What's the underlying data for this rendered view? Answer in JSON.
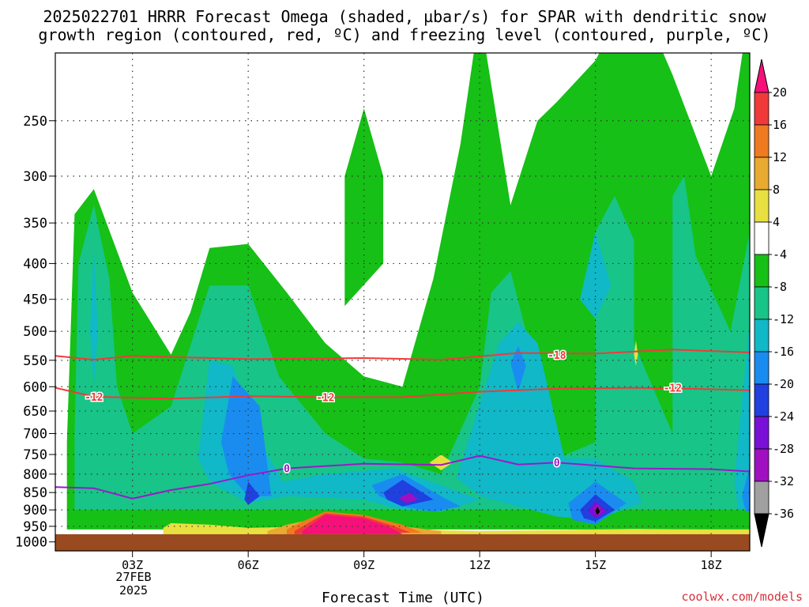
{
  "title": {
    "line1": "2025022701 HRRR Forecast Omega (shaded, µbar/s) for SPAR with dendritic snow",
    "line2": "growth region (contoured, red, ºC) and freezing level (contoured, purple, ºC)"
  },
  "chart_data": {
    "type": "heatmap",
    "xlabel": "Forecast Time (UTC)",
    "x_ticks": [
      "03Z",
      "06Z",
      "09Z",
      "12Z",
      "15Z",
      "18Z"
    ],
    "x_tick_hours": [
      3,
      6,
      9,
      12,
      15,
      18
    ],
    "x_range_hours": [
      1,
      19
    ],
    "date_label": {
      "day": "27FEB",
      "year": "2025"
    },
    "y_ticks": [
      250,
      300,
      350,
      400,
      450,
      500,
      550,
      600,
      650,
      700,
      750,
      800,
      850,
      900,
      950,
      1000
    ],
    "y_range_hpa": [
      200,
      1030
    ],
    "y_scale": "log-pressure",
    "surface_pressure_hpa": 975,
    "grid": "dotted",
    "colorbar": {
      "labels": [
        "20",
        "16",
        "12",
        "8",
        "4",
        "-4",
        "-8",
        "-12",
        "-16",
        "-20",
        "-24",
        "-28",
        "-32",
        "-36"
      ],
      "colors": [
        "#f5107a",
        "#f03a3a",
        "#f07a20",
        "#e8aa30",
        "#e8e040",
        "#ffffff",
        "#16c016",
        "#18c488",
        "#10b8c8",
        "#1a8cf0",
        "#2040e0",
        "#7a10d8",
        "#a010c0",
        "#a0a0a0",
        "#000000"
      ]
    },
    "contours": [
      {
        "label": "-18",
        "color": "#f03a3a",
        "points": [
          [
            1,
            542
          ],
          [
            2,
            549
          ],
          [
            3,
            542
          ],
          [
            6,
            548
          ],
          [
            9,
            546
          ],
          [
            11,
            549
          ],
          [
            13,
            537
          ],
          [
            15,
            538
          ],
          [
            17,
            531
          ],
          [
            19,
            536
          ]
        ],
        "label_at": [
          14,
          540
        ]
      },
      {
        "label": "-12",
        "color": "#f03a3a",
        "points": [
          [
            1,
            602
          ],
          [
            2,
            620
          ],
          [
            4,
            624
          ],
          [
            6,
            619
          ],
          [
            8,
            621
          ],
          [
            10,
            621
          ],
          [
            12,
            610
          ],
          [
            14,
            604
          ],
          [
            16,
            602
          ],
          [
            18,
            605
          ],
          [
            19,
            607
          ]
        ],
        "label_at": [
          [
            2,
            620
          ],
          [
            8,
            621
          ],
          [
            17,
            602
          ]
        ]
      },
      {
        "label": "0",
        "color": "#9a1ac8",
        "points": [
          [
            1,
            835
          ],
          [
            2,
            838
          ],
          [
            3,
            867
          ],
          [
            4,
            843
          ],
          [
            5,
            826
          ],
          [
            6,
            803
          ],
          [
            7,
            785
          ],
          [
            9,
            773
          ],
          [
            11,
            776
          ],
          [
            12,
            753
          ],
          [
            13,
            775
          ],
          [
            14,
            770
          ],
          [
            16,
            785
          ],
          [
            18,
            787
          ],
          [
            19,
            793
          ]
        ],
        "label_at": [
          [
            7,
            785
          ],
          [
            14,
            770
          ]
        ]
      }
    ],
    "omega_regions": [
      {
        "value": -8,
        "polygon": [
          [
            1.3,
            720
          ],
          [
            1.5,
            340
          ],
          [
            2,
            313
          ],
          [
            3,
            440
          ],
          [
            4,
            540
          ],
          [
            4.5,
            470
          ],
          [
            5,
            380
          ],
          [
            6,
            375
          ],
          [
            7,
            440
          ],
          [
            8,
            520
          ],
          [
            9,
            580
          ],
          [
            10,
            600
          ],
          [
            10.8,
            420
          ],
          [
            11.5,
            270
          ],
          [
            12,
            175
          ],
          [
            12.8,
            330
          ],
          [
            13.5,
            250
          ],
          [
            14,
            235
          ],
          [
            15,
            205
          ],
          [
            16,
            160
          ],
          [
            17,
            215
          ],
          [
            18,
            300
          ],
          [
            18.6,
            240
          ],
          [
            19,
            170
          ],
          [
            19,
            960
          ],
          [
            1.3,
            960
          ]
        ]
      },
      {
        "value": -8,
        "polygon": [
          [
            8.5,
            460
          ],
          [
            8.5,
            300
          ],
          [
            9,
            240
          ],
          [
            9.5,
            300
          ],
          [
            9.5,
            400
          ]
        ]
      },
      {
        "value": -12,
        "polygon": [
          [
            1.5,
            700
          ],
          [
            1.6,
            400
          ],
          [
            2,
            330
          ],
          [
            2.4,
            420
          ],
          [
            2.6,
            600
          ],
          [
            3,
            700
          ],
          [
            4,
            640
          ],
          [
            5,
            430
          ],
          [
            6,
            430
          ],
          [
            6.8,
            580
          ],
          [
            8,
            700
          ],
          [
            9,
            760
          ],
          [
            10,
            770
          ],
          [
            11,
            800
          ],
          [
            12,
            600
          ],
          [
            12.3,
            440
          ],
          [
            12.8,
            410
          ],
          [
            13.2,
            500
          ],
          [
            14,
            760
          ],
          [
            15,
            720
          ],
          [
            15,
            360
          ],
          [
            15.5,
            320
          ],
          [
            16,
            370
          ],
          [
            16,
            520
          ],
          [
            17,
            700
          ],
          [
            17,
            320
          ],
          [
            17.3,
            300
          ],
          [
            17.6,
            390
          ],
          [
            18.5,
            500
          ],
          [
            19,
            360
          ],
          [
            19,
            900
          ],
          [
            1.5,
            900
          ]
        ]
      },
      {
        "value": -16,
        "polygon": [
          [
            1.9,
            500
          ],
          [
            2,
            380
          ],
          [
            2.1,
            500
          ],
          [
            2,
            600
          ]
        ]
      },
      {
        "value": -16,
        "polygon": [
          [
            4.7,
            760
          ],
          [
            5,
            550
          ],
          [
            5.6,
            560
          ],
          [
            6.2,
            700
          ],
          [
            6.9,
            820
          ],
          [
            8,
            800
          ],
          [
            9.8,
            785
          ],
          [
            11,
            830
          ],
          [
            12,
            870
          ],
          [
            11,
            905
          ],
          [
            10,
            900
          ],
          [
            9,
            870
          ],
          [
            7,
            860
          ],
          [
            6,
            880
          ],
          [
            5,
            820
          ]
        ]
      },
      {
        "value": -16,
        "polygon": [
          [
            11.4,
            810
          ],
          [
            12.5,
            520
          ],
          [
            13,
            485
          ],
          [
            13.5,
            520
          ],
          [
            14.2,
            760
          ],
          [
            15,
            760
          ],
          [
            16,
            820
          ],
          [
            16.2,
            880
          ],
          [
            15,
            930
          ],
          [
            14,
            920
          ],
          [
            13,
            890
          ],
          [
            12,
            860
          ]
        ]
      },
      {
        "value": -16,
        "polygon": [
          [
            14.6,
            450
          ],
          [
            15,
            360
          ],
          [
            15.4,
            430
          ],
          [
            15,
            480
          ]
        ]
      },
      {
        "value": -16,
        "polygon": [
          [
            18.6,
            820
          ],
          [
            19,
            480
          ],
          [
            19,
            900
          ],
          [
            18.7,
            900
          ]
        ]
      },
      {
        "value": -20,
        "polygon": [
          [
            5.3,
            720
          ],
          [
            5.6,
            580
          ],
          [
            6.3,
            640
          ],
          [
            6.6,
            860
          ],
          [
            6,
            860
          ],
          [
            5.5,
            800
          ]
        ]
      },
      {
        "value": -20,
        "polygon": [
          [
            9.2,
            830
          ],
          [
            10,
            800
          ],
          [
            11,
            860
          ],
          [
            11.5,
            890
          ],
          [
            10.8,
            905
          ],
          [
            10,
            890
          ],
          [
            9.4,
            860
          ]
        ]
      },
      {
        "value": -20,
        "polygon": [
          [
            12.8,
            555
          ],
          [
            13,
            525
          ],
          [
            13.2,
            560
          ],
          [
            13,
            610
          ]
        ]
      },
      {
        "value": -20,
        "polygon": [
          [
            14.3,
            880
          ],
          [
            15,
            820
          ],
          [
            15.8,
            880
          ],
          [
            15,
            945
          ],
          [
            14.4,
            930
          ]
        ]
      },
      {
        "value": -20,
        "polygon": [
          [
            18.8,
            860
          ],
          [
            19,
            780
          ],
          [
            19,
            905
          ],
          [
            18.9,
            905
          ]
        ]
      },
      {
        "value": -24,
        "polygon": [
          [
            5.9,
            870
          ],
          [
            6,
            820
          ],
          [
            6.3,
            860
          ],
          [
            6,
            885
          ]
        ]
      },
      {
        "value": -24,
        "polygon": [
          [
            9.5,
            850
          ],
          [
            10,
            815
          ],
          [
            10.8,
            870
          ],
          [
            10,
            890
          ],
          [
            9.6,
            870
          ]
        ]
      },
      {
        "value": -24,
        "polygon": [
          [
            14.6,
            900
          ],
          [
            15,
            855
          ],
          [
            15.5,
            900
          ],
          [
            15,
            935
          ],
          [
            14.7,
            925
          ]
        ]
      },
      {
        "value": -28,
        "polygon": [
          [
            14.8,
            905
          ],
          [
            15,
            875
          ],
          [
            15.3,
            905
          ],
          [
            15,
            925
          ]
        ]
      },
      {
        "value": -32,
        "polygon": [
          [
            9.9,
            865
          ],
          [
            10.2,
            850
          ],
          [
            10.4,
            870
          ],
          [
            10.1,
            880
          ]
        ]
      },
      {
        "value": -32,
        "polygon": [
          [
            14.95,
            900
          ],
          [
            15.05,
            880
          ],
          [
            15.2,
            905
          ],
          [
            15.05,
            920
          ]
        ]
      },
      {
        "value": -36,
        "polygon": [
          [
            15,
            905
          ],
          [
            15.05,
            890
          ],
          [
            15.12,
            905
          ],
          [
            15.05,
            915
          ]
        ]
      },
      {
        "value": 4,
        "polygon": [
          [
            10.7,
            770
          ],
          [
            11,
            750
          ],
          [
            11.3,
            770
          ],
          [
            11,
            790
          ]
        ]
      },
      {
        "value": 4,
        "polygon": [
          [
            3.8,
            955
          ],
          [
            4,
            940
          ],
          [
            5,
            945
          ],
          [
            6,
            955
          ],
          [
            8,
            950
          ],
          [
            10,
            960
          ],
          [
            12,
            965
          ],
          [
            14,
            962
          ],
          [
            16,
            958
          ],
          [
            18,
            960
          ],
          [
            19,
            960
          ],
          [
            19,
            975
          ],
          [
            3.8,
            975
          ]
        ]
      },
      {
        "value": 4,
        "polygon": [
          [
            16,
            540
          ],
          [
            16.05,
            515
          ],
          [
            16.1,
            540
          ],
          [
            16.05,
            560
          ]
        ]
      },
      {
        "value": 8,
        "polygon": [
          [
            6.5,
            965
          ],
          [
            7,
            945
          ],
          [
            8,
            920
          ],
          [
            9,
            930
          ],
          [
            10,
            950
          ],
          [
            11,
            965
          ],
          [
            11,
            975
          ],
          [
            6.5,
            975
          ]
        ]
      },
      {
        "value": 12,
        "polygon": [
          [
            7,
            960
          ],
          [
            7.5,
            930
          ],
          [
            8,
            905
          ],
          [
            9,
            915
          ],
          [
            10,
            945
          ],
          [
            10.5,
            970
          ],
          [
            7,
            975
          ]
        ]
      },
      {
        "value": 16,
        "polygon": [
          [
            7.2,
            965
          ],
          [
            7.7,
            930
          ],
          [
            8,
            910
          ],
          [
            9,
            920
          ],
          [
            9.8,
            950
          ],
          [
            10.2,
            970
          ],
          [
            7.2,
            975
          ]
        ]
      },
      {
        "value": 20,
        "polygon": [
          [
            7.4,
            965
          ],
          [
            8,
            915
          ],
          [
            9,
            925
          ],
          [
            9.7,
            955
          ],
          [
            10,
            975
          ],
          [
            7.4,
            975
          ]
        ]
      }
    ]
  },
  "credit": "coolwx.com/models"
}
